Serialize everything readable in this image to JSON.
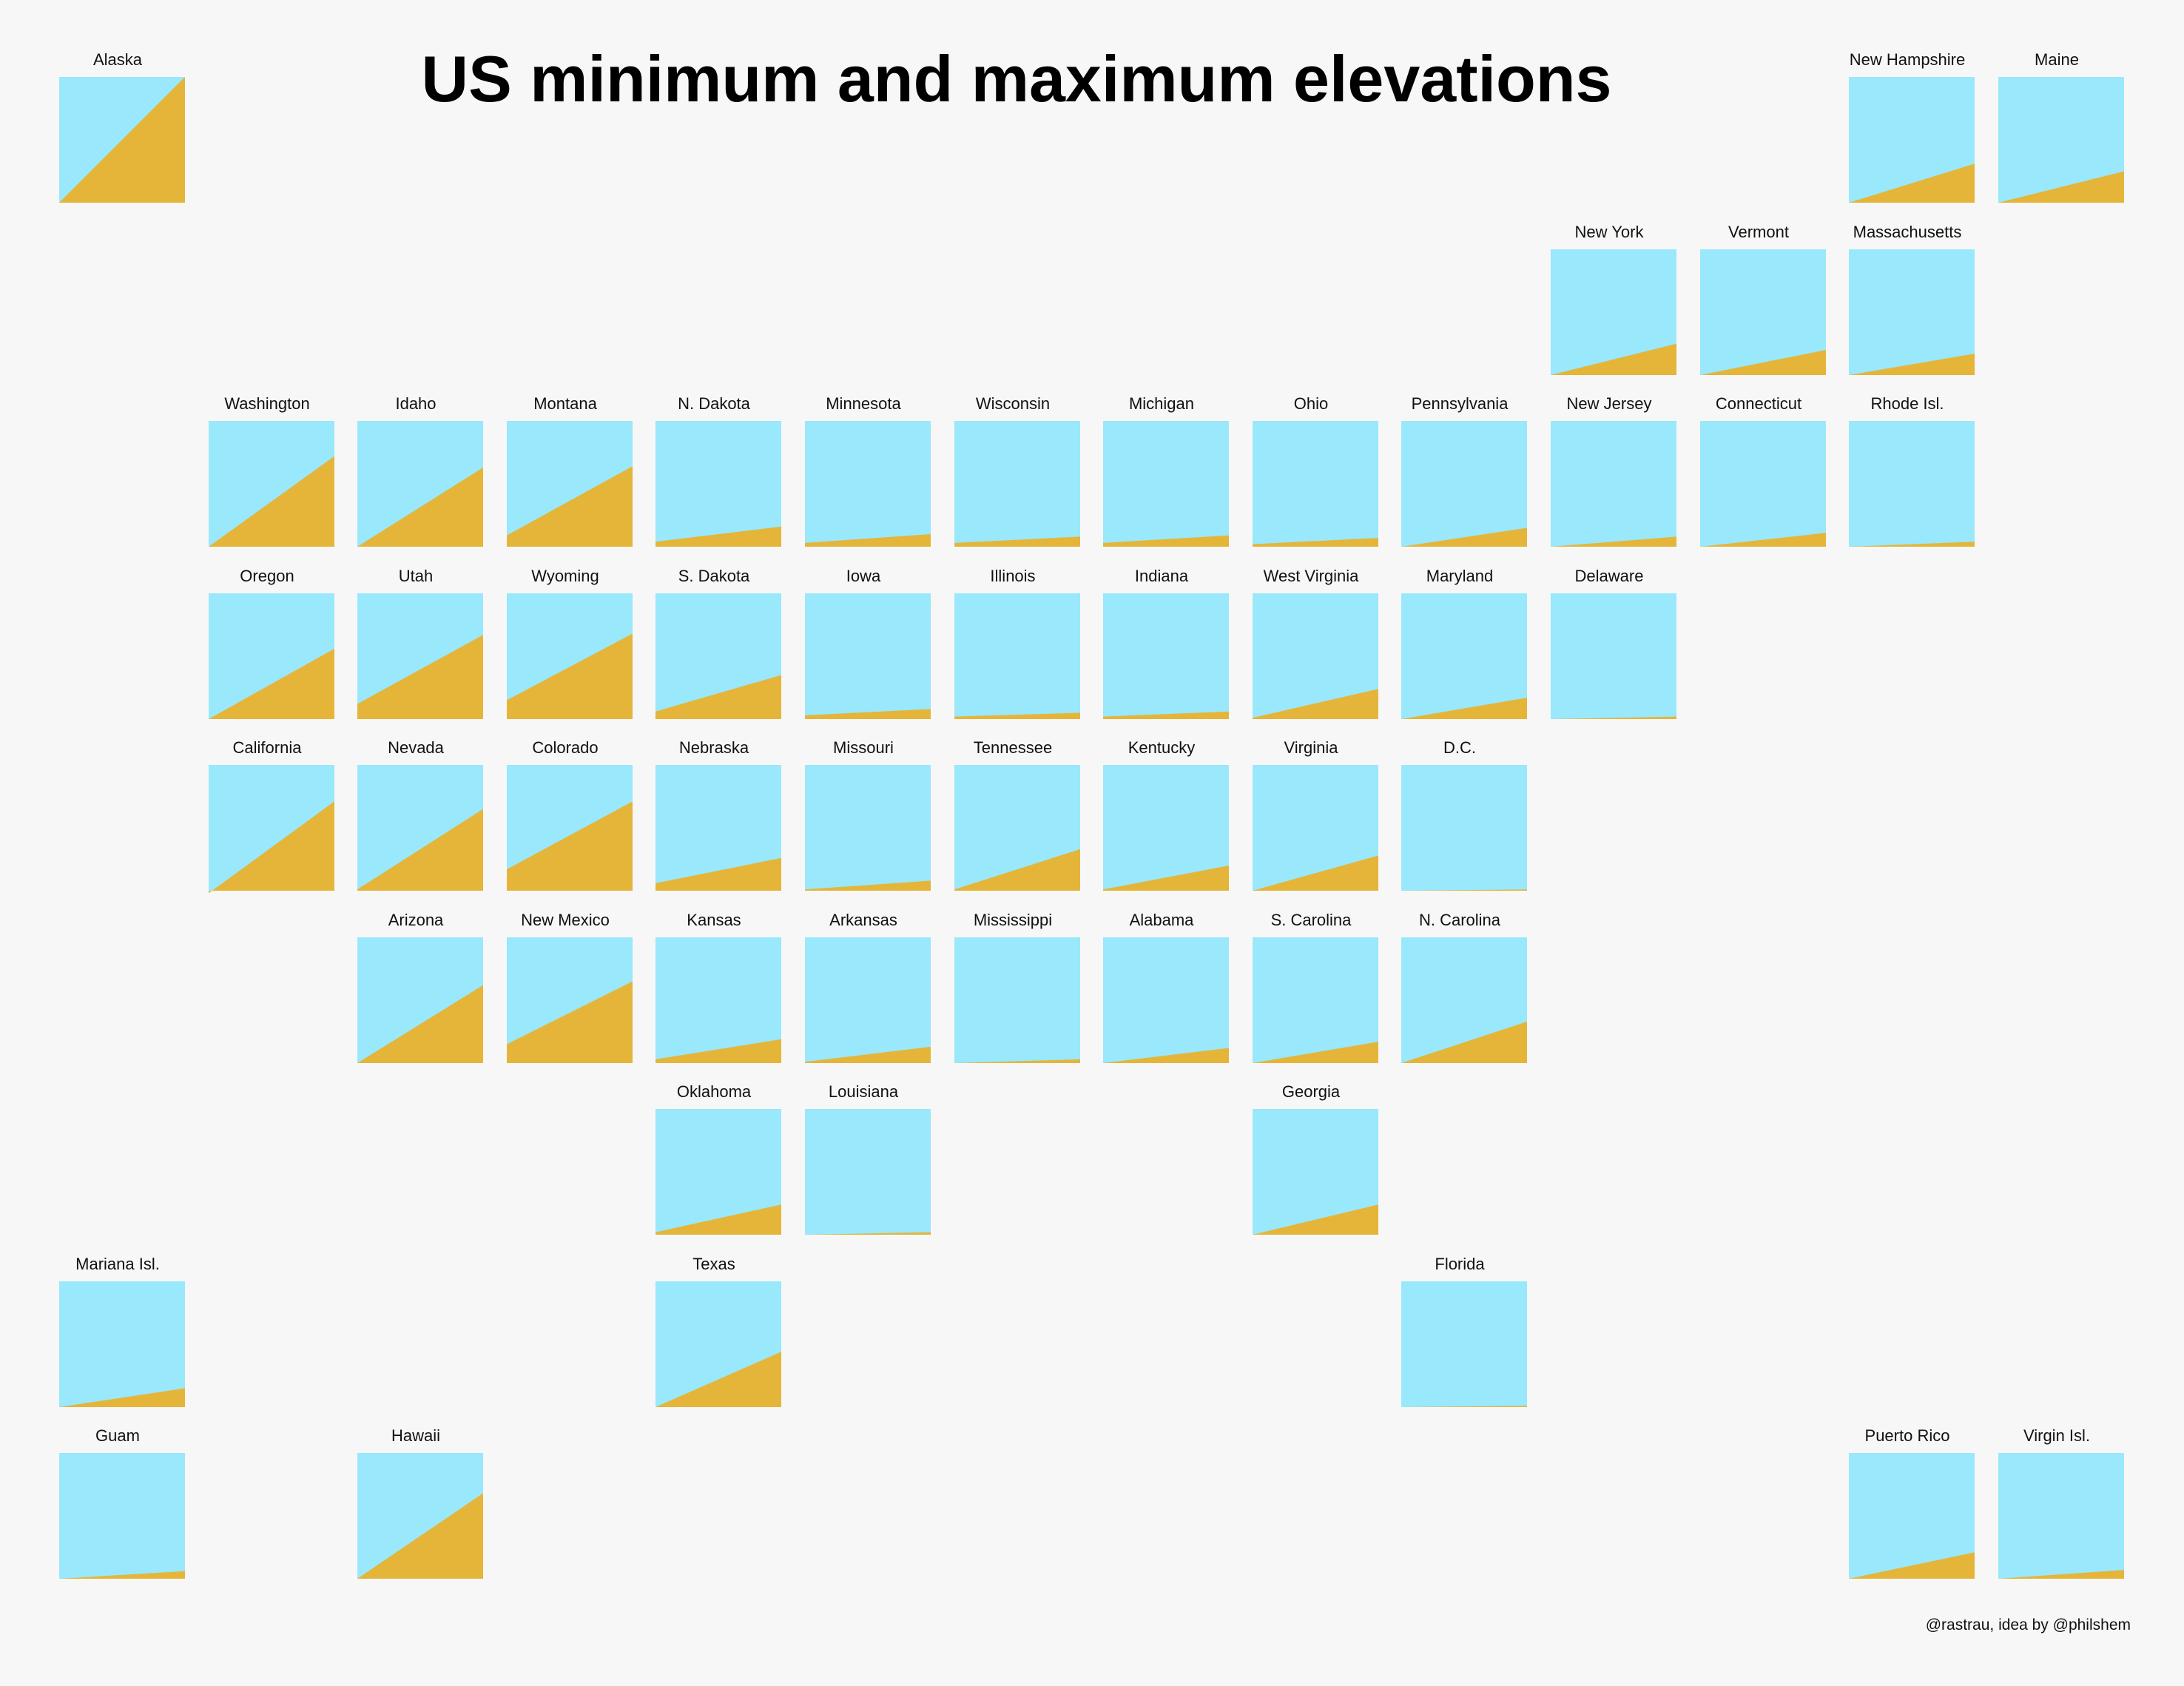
{
  "title": "US minimum and maximum elevations",
  "credit": "@rastrau, idea by @philshem",
  "colors": {
    "background": "#f7f7f7",
    "sky": "#9ae8fb",
    "terrain": "#e5b53a"
  },
  "chart_data": {
    "type": "area",
    "description": "Tile grid map; each tile shows a wedge rising from the minimum elevation (left edge) to the maximum elevation (right edge), on a shared scale of 0 to 1 (1 = tile top).",
    "ylim": [
      0,
      1
    ],
    "tiles": [
      {
        "name": "Alaska",
        "row": 0,
        "col": 0,
        "min": 0.0,
        "max": 1.0
      },
      {
        "name": "New Hampshire",
        "row": 0,
        "col": 12,
        "min": 0.0,
        "max": 0.31
      },
      {
        "name": "Maine",
        "row": 0,
        "col": 13,
        "min": 0.0,
        "max": 0.25
      },
      {
        "name": "New York",
        "row": 1,
        "col": 10,
        "min": 0.0,
        "max": 0.25
      },
      {
        "name": "Vermont",
        "row": 1,
        "col": 11,
        "min": 0.0,
        "max": 0.2
      },
      {
        "name": "Massachusetts",
        "row": 1,
        "col": 12,
        "min": 0.0,
        "max": 0.17
      },
      {
        "name": "Washington",
        "row": 2,
        "col": 1,
        "min": 0.0,
        "max": 0.72
      },
      {
        "name": "Idaho",
        "row": 2,
        "col": 2,
        "min": 0.0,
        "max": 0.63
      },
      {
        "name": "Montana",
        "row": 2,
        "col": 3,
        "min": 0.09,
        "max": 0.64
      },
      {
        "name": "N. Dakota",
        "row": 2,
        "col": 4,
        "min": 0.04,
        "max": 0.16
      },
      {
        "name": "Minnesota",
        "row": 2,
        "col": 5,
        "min": 0.03,
        "max": 0.1
      },
      {
        "name": "Wisconsin",
        "row": 2,
        "col": 6,
        "min": 0.03,
        "max": 0.08
      },
      {
        "name": "Michigan",
        "row": 2,
        "col": 7,
        "min": 0.03,
        "max": 0.09
      },
      {
        "name": "Ohio",
        "row": 2,
        "col": 8,
        "min": 0.02,
        "max": 0.07
      },
      {
        "name": "Pennsylvania",
        "row": 2,
        "col": 9,
        "min": 0.0,
        "max": 0.15
      },
      {
        "name": "New Jersey",
        "row": 2,
        "col": 10,
        "min": 0.0,
        "max": 0.08
      },
      {
        "name": "Connecticut",
        "row": 2,
        "col": 11,
        "min": 0.0,
        "max": 0.11
      },
      {
        "name": "Rhode Isl.",
        "row": 2,
        "col": 12,
        "min": 0.0,
        "max": 0.04
      },
      {
        "name": "Oregon",
        "row": 3,
        "col": 1,
        "min": 0.0,
        "max": 0.56
      },
      {
        "name": "Utah",
        "row": 3,
        "col": 2,
        "min": 0.12,
        "max": 0.67
      },
      {
        "name": "Wyoming",
        "row": 3,
        "col": 3,
        "min": 0.15,
        "max": 0.68
      },
      {
        "name": "S. Dakota",
        "row": 3,
        "col": 4,
        "min": 0.06,
        "max": 0.35
      },
      {
        "name": "Iowa",
        "row": 3,
        "col": 5,
        "min": 0.03,
        "max": 0.08
      },
      {
        "name": "Illinois",
        "row": 3,
        "col": 6,
        "min": 0.02,
        "max": 0.05
      },
      {
        "name": "Indiana",
        "row": 3,
        "col": 7,
        "min": 0.02,
        "max": 0.06
      },
      {
        "name": "West Virginia",
        "row": 3,
        "col": 8,
        "min": 0.01,
        "max": 0.24
      },
      {
        "name": "Maryland",
        "row": 3,
        "col": 9,
        "min": 0.0,
        "max": 0.17
      },
      {
        "name": "Delaware",
        "row": 3,
        "col": 10,
        "min": 0.0,
        "max": 0.02
      },
      {
        "name": "California",
        "row": 4,
        "col": 1,
        "min": -0.02,
        "max": 0.71
      },
      {
        "name": "Nevada",
        "row": 4,
        "col": 2,
        "min": 0.01,
        "max": 0.65
      },
      {
        "name": "Colorado",
        "row": 4,
        "col": 3,
        "min": 0.17,
        "max": 0.71
      },
      {
        "name": "Nebraska",
        "row": 4,
        "col": 4,
        "min": 0.06,
        "max": 0.26
      },
      {
        "name": "Missouri",
        "row": 4,
        "col": 5,
        "min": 0.01,
        "max": 0.08
      },
      {
        "name": "Tennessee",
        "row": 4,
        "col": 6,
        "min": 0.01,
        "max": 0.33
      },
      {
        "name": "Kentucky",
        "row": 4,
        "col": 7,
        "min": 0.01,
        "max": 0.2
      },
      {
        "name": "Virginia",
        "row": 4,
        "col": 8,
        "min": 0.0,
        "max": 0.28
      },
      {
        "name": "D.C.",
        "row": 4,
        "col": 9,
        "min": 0.0,
        "max": 0.01
      },
      {
        "name": "Arizona",
        "row": 5,
        "col": 2,
        "min": 0.0,
        "max": 0.62
      },
      {
        "name": "New Mexico",
        "row": 5,
        "col": 3,
        "min": 0.15,
        "max": 0.65
      },
      {
        "name": "Kansas",
        "row": 5,
        "col": 4,
        "min": 0.03,
        "max": 0.19
      },
      {
        "name": "Arkansas",
        "row": 5,
        "col": 5,
        "min": 0.01,
        "max": 0.13
      },
      {
        "name": "Mississippi",
        "row": 5,
        "col": 6,
        "min": 0.0,
        "max": 0.03
      },
      {
        "name": "Alabama",
        "row": 5,
        "col": 7,
        "min": 0.0,
        "max": 0.12
      },
      {
        "name": "S. Carolina",
        "row": 5,
        "col": 8,
        "min": 0.0,
        "max": 0.17
      },
      {
        "name": "N. Carolina",
        "row": 5,
        "col": 9,
        "min": 0.0,
        "max": 0.33
      },
      {
        "name": "Oklahoma",
        "row": 6,
        "col": 4,
        "min": 0.02,
        "max": 0.24
      },
      {
        "name": "Louisiana",
        "row": 6,
        "col": 5,
        "min": 0.0,
        "max": 0.02
      },
      {
        "name": "Georgia",
        "row": 6,
        "col": 8,
        "min": 0.0,
        "max": 0.24
      },
      {
        "name": "Mariana Isl.",
        "row": 7,
        "col": 0,
        "min": 0.0,
        "max": 0.15
      },
      {
        "name": "Texas",
        "row": 7,
        "col": 4,
        "min": 0.0,
        "max": 0.44
      },
      {
        "name": "Florida",
        "row": 7,
        "col": 9,
        "min": 0.0,
        "max": 0.01
      },
      {
        "name": "Guam",
        "row": 8,
        "col": 0,
        "min": 0.0,
        "max": 0.06
      },
      {
        "name": "Hawaii",
        "row": 8,
        "col": 2,
        "min": 0.0,
        "max": 0.68
      },
      {
        "name": "Puerto Rico",
        "row": 8,
        "col": 12,
        "min": 0.0,
        "max": 0.21
      },
      {
        "name": "Virgin Isl.",
        "row": 8,
        "col": 13,
        "min": 0.0,
        "max": 0.07
      }
    ]
  }
}
